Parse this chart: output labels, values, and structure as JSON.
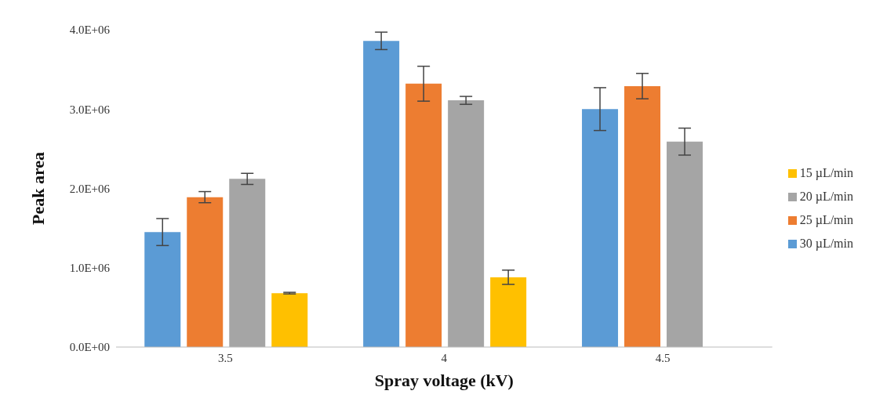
{
  "chart_data": {
    "type": "bar",
    "xlabel": "Spray voltage (kV)",
    "ylabel": "Peak area",
    "categories": [
      "3.5",
      "4",
      "4.5"
    ],
    "series": [
      {
        "name": "30 µL/min",
        "color": "#5b9bd5",
        "values": [
          1450000,
          3860000,
          3000000
        ],
        "errors": [
          170000,
          110000,
          270000
        ]
      },
      {
        "name": "25 µL/min",
        "color": "#ed7d31",
        "values": [
          1890000,
          3320000,
          3290000
        ],
        "errors": [
          70000,
          220000,
          160000
        ]
      },
      {
        "name": "20 µL/min",
        "color": "#a5a5a5",
        "values": [
          2120000,
          3110000,
          2590000
        ],
        "errors": [
          70000,
          50000,
          170000
        ]
      },
      {
        "name": "15 µL/min",
        "color": "#ffc000",
        "values": [
          680000,
          880000,
          null
        ],
        "errors": [
          10000,
          90000,
          null
        ]
      }
    ],
    "ylim": [
      0,
      4000000
    ],
    "yticks": [
      {
        "value": 0,
        "label": "0.0E+00"
      },
      {
        "value": 1000000,
        "label": "1.0E+06"
      },
      {
        "value": 2000000,
        "label": "2.0E+06"
      },
      {
        "value": 3000000,
        "label": "3.0E+06"
      },
      {
        "value": 4000000,
        "label": "4.0E+06"
      }
    ],
    "grid": false,
    "legend": "right"
  }
}
